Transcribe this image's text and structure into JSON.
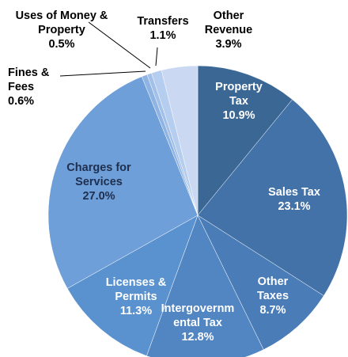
{
  "chart_data": {
    "type": "pie",
    "categories": [
      "Property Tax",
      "Sales Tax",
      "Other Taxes",
      "Intergovernmental Tax",
      "Licenses & Permits",
      "Charges for Services",
      "Fines & Fees",
      "Uses of Money & Property",
      "Transfers",
      "Other Revenue"
    ],
    "values": [
      10.9,
      23.1,
      8.7,
      12.8,
      11.3,
      27.0,
      0.6,
      0.5,
      1.1,
      3.9
    ],
    "value_labels": [
      "10.9%",
      "23.1%",
      "8.7%",
      "12.8%",
      "11.3%",
      "27.0%",
      "0.6%",
      "0.5%",
      "1.1%",
      "3.9%"
    ],
    "colors": [
      "#3b6795",
      "#4272a8",
      "#4a7cb7",
      "#5186c3",
      "#5a92cf",
      "#6e9fd8",
      "#8fb3e2",
      "#a2c0e8",
      "#b5cdee",
      "#cad9f1"
    ]
  }
}
